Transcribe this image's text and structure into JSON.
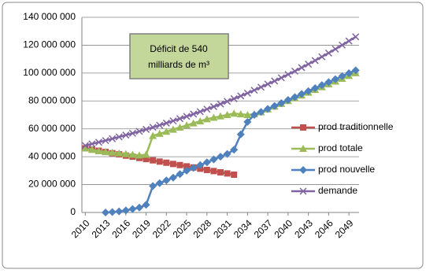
{
  "chart_data": {
    "type": "line",
    "annotation": [
      "Déficit de 540",
      "milliards  de m³"
    ],
    "x": [
      2010,
      2011,
      2012,
      2013,
      2014,
      2015,
      2016,
      2017,
      2018,
      2019,
      2020,
      2021,
      2022,
      2023,
      2024,
      2025,
      2026,
      2027,
      2028,
      2029,
      2030,
      2031,
      2032,
      2033,
      2034,
      2035,
      2036,
      2037,
      2038,
      2039,
      2040,
      2041,
      2042,
      2043,
      2044,
      2045,
      2046,
      2047,
      2048,
      2049,
      2050
    ],
    "xlim": [
      2009.5,
      2050.5
    ],
    "xticks": [
      2010,
      2013,
      2016,
      2019,
      2022,
      2025,
      2028,
      2031,
      2034,
      2037,
      2040,
      2043,
      2046,
      2049
    ],
    "ylim": [
      0,
      140000000
    ],
    "yticks": [
      0,
      {
        "value": 20000000,
        "label": "20 000 000"
      },
      {
        "value": 40000000,
        "label": "40 000 000"
      },
      {
        "value": 60000000,
        "label": "60 000 000"
      },
      {
        "value": 80000000,
        "label": "80 000 000"
      },
      {
        "value": 100000000,
        "label": "100 000 000"
      },
      {
        "value": 120000000,
        "label": "120 000 000"
      },
      {
        "value": 140000000,
        "label": "140 000 000"
      }
    ],
    "grid": true,
    "legend": "right",
    "series": [
      {
        "name": "prod traditionnelle",
        "color": "#c0504d",
        "marker": "square",
        "values": [
          46000000,
          45100000,
          44300000,
          43400000,
          42500000,
          41700000,
          40800000,
          40000000,
          39100000,
          38300000,
          37400000,
          36500000,
          35700000,
          34800000,
          34000000,
          33100000,
          32300000,
          31400000,
          30500000,
          29700000,
          28800000,
          28000000,
          27100000,
          null,
          null,
          null,
          null,
          null,
          null,
          null,
          null,
          null,
          null,
          null,
          null,
          null,
          null,
          null,
          null,
          null,
          null
        ]
      },
      {
        "name": "prod totale",
        "color": "#9bbb59",
        "marker": "triangle",
        "values": [
          46000000,
          45000000,
          44000000,
          43500000,
          43000000,
          42500000,
          42000000,
          41500000,
          41000000,
          41500000,
          55000000,
          56500000,
          58000000,
          59500000,
          61000000,
          62500000,
          64000000,
          65500000,
          67000000,
          68000000,
          69000000,
          70000000,
          71000000,
          70500000,
          70000000,
          70500000,
          72000000,
          74000000,
          76000000,
          78000000,
          80000000,
          82000000,
          84000000,
          86000000,
          88000000,
          90000000,
          92000000,
          94000000,
          96000000,
          98000000,
          100000000
        ]
      },
      {
        "name": "prod nouvelle",
        "color": "#4f81bd",
        "marker": "diamond",
        "values": [
          null,
          null,
          null,
          0,
          300000,
          800000,
          1500000,
          2500000,
          3500000,
          5500000,
          19000000,
          21000000,
          23000000,
          25000000,
          27500000,
          30000000,
          32000000,
          34000000,
          36000000,
          38000000,
          40000000,
          42000000,
          45000000,
          56000000,
          65000000,
          70000000,
          72100000,
          74300000,
          76400000,
          78500000,
          80700000,
          82800000,
          85000000,
          87100000,
          89200000,
          91400000,
          93500000,
          95600000,
          97800000,
          99900000,
          102000000
        ]
      },
      {
        "name": "demande",
        "color": "#8064a2",
        "marker": "x",
        "values": [
          48000000,
          49200000,
          50400000,
          51600000,
          52900000,
          54200000,
          55500000,
          56800000,
          58200000,
          59600000,
          61100000,
          62600000,
          64100000,
          65700000,
          67300000,
          68900000,
          70600000,
          72300000,
          74100000,
          75900000,
          77800000,
          79700000,
          81600000,
          83600000,
          85600000,
          87700000,
          89900000,
          92100000,
          94300000,
          96600000,
          99000000,
          101400000,
          103900000,
          106400000,
          109000000,
          111700000,
          114400000,
          117200000,
          120100000,
          123000000,
          126000000
        ]
      }
    ]
  }
}
